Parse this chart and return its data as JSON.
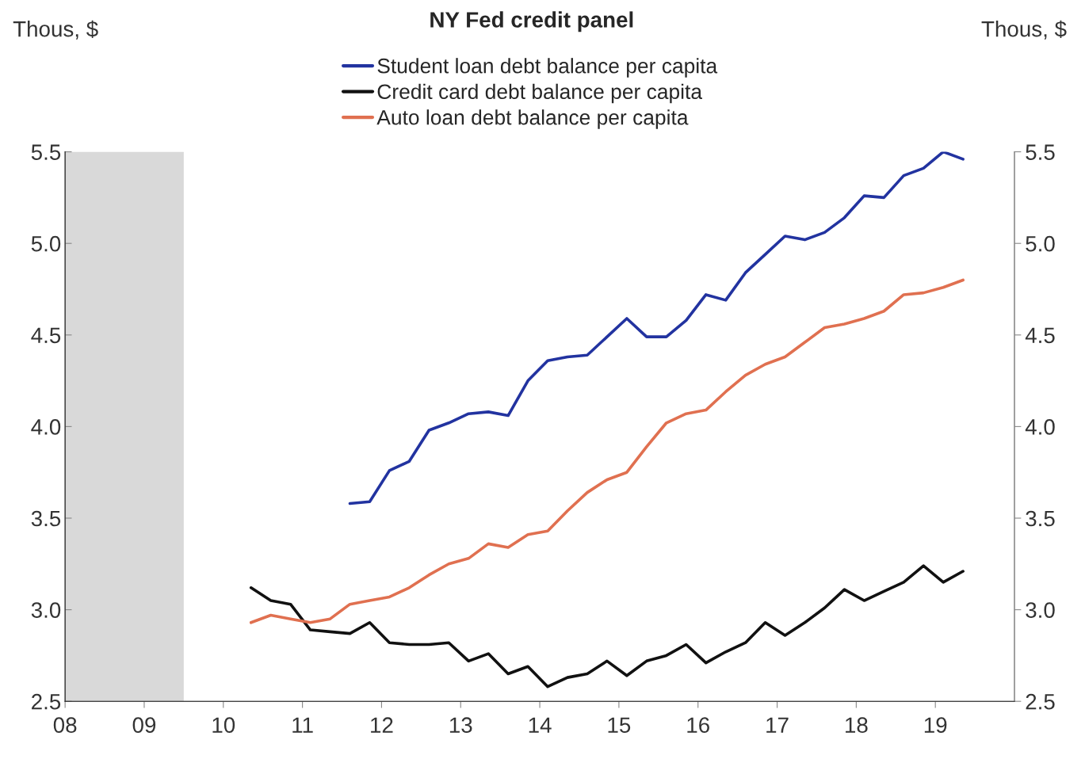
{
  "chart_data": {
    "type": "line",
    "title": "NY Fed credit panel",
    "ylabel": "Thous, $",
    "y2label": "Thous, $",
    "xlim": [
      2008,
      2020
    ],
    "xticks": [
      {
        "value": 2008,
        "label": "08"
      },
      {
        "value": 2009,
        "label": "09"
      },
      {
        "value": 2010,
        "label": "10"
      },
      {
        "value": 2011,
        "label": "11"
      },
      {
        "value": 2012,
        "label": "12"
      },
      {
        "value": 2013,
        "label": "13"
      },
      {
        "value": 2014,
        "label": "14"
      },
      {
        "value": 2015,
        "label": "15"
      },
      {
        "value": 2016,
        "label": "16"
      },
      {
        "value": 2017,
        "label": "17"
      },
      {
        "value": 2018,
        "label": "18"
      },
      {
        "value": 2019,
        "label": "19"
      }
    ],
    "ylim": [
      2.5,
      5.5
    ],
    "yticks": [
      2.5,
      {
        "value": 3,
        "label": "3.0"
      },
      3.5,
      {
        "value": 4,
        "label": "4.0"
      },
      4.5,
      {
        "value": 5,
        "label": "5.0"
      },
      5.5
    ],
    "y2lim": [
      2.5,
      5.5
    ],
    "y2ticks": [
      2.5,
      {
        "value": 3,
        "label": "3.0"
      },
      3.5,
      {
        "value": 4,
        "label": "4.0"
      },
      4.5,
      {
        "value": 5,
        "label": "5.0"
      },
      5.5
    ],
    "legend": "top",
    "grid": false,
    "line_style": "solid",
    "marker": "none",
    "bands": [
      {
        "axis": "x",
        "from": 2008,
        "to": 2009.5,
        "color": "#d9d9d9"
      }
    ],
    "series": [
      {
        "name": "Student loan debt balance per capita",
        "color": "#2233a0",
        "x": [
          2011.6,
          2011.85,
          2012.1,
          2012.35,
          2012.6,
          2012.85,
          2013.1,
          2013.35,
          2013.6,
          2013.85,
          2014.1,
          2014.35,
          2014.6,
          2014.85,
          2015.1,
          2015.35,
          2015.6,
          2015.85,
          2016.1,
          2016.35,
          2016.6,
          2016.85,
          2017.1,
          2017.35,
          2017.6,
          2017.85,
          2018.1,
          2018.35,
          2018.6,
          2018.85,
          2019.1,
          2019.35
        ],
        "values": [
          3.58,
          3.59,
          3.76,
          3.81,
          3.98,
          4.02,
          4.07,
          4.08,
          4.06,
          4.25,
          4.36,
          4.38,
          4.39,
          4.49,
          4.59,
          4.49,
          4.49,
          4.58,
          4.72,
          4.69,
          4.84,
          4.94,
          5.04,
          5.02,
          5.06,
          5.14,
          5.26,
          5.25,
          5.37,
          5.41,
          5.5,
          5.46
        ]
      },
      {
        "name": "Credit card debt balance per capita",
        "color": "#111111",
        "x": [
          2010.35,
          2010.6,
          2010.85,
          2011.1,
          2011.35,
          2011.6,
          2011.85,
          2012.1,
          2012.35,
          2012.6,
          2012.85,
          2013.1,
          2013.35,
          2013.6,
          2013.85,
          2014.1,
          2014.35,
          2014.6,
          2014.85,
          2015.1,
          2015.35,
          2015.6,
          2015.85,
          2016.1,
          2016.35,
          2016.6,
          2016.85,
          2017.1,
          2017.35,
          2017.6,
          2017.85,
          2018.1,
          2018.35,
          2018.6,
          2018.85,
          2019.1,
          2019.35
        ],
        "values": [
          3.12,
          3.05,
          3.03,
          2.89,
          2.88,
          2.87,
          2.93,
          2.82,
          2.81,
          2.81,
          2.82,
          2.72,
          2.76,
          2.65,
          2.69,
          2.58,
          2.63,
          2.65,
          2.72,
          2.64,
          2.72,
          2.75,
          2.81,
          2.71,
          2.77,
          2.82,
          2.93,
          2.86,
          2.93,
          3.01,
          3.11,
          3.05,
          3.1,
          3.15,
          3.24,
          3.15,
          3.21
        ]
      },
      {
        "name": "Auto loan debt balance per capita",
        "color": "#e07050",
        "x": [
          2010.35,
          2010.6,
          2010.85,
          2011.1,
          2011.35,
          2011.6,
          2011.85,
          2012.1,
          2012.35,
          2012.6,
          2012.85,
          2013.1,
          2013.35,
          2013.6,
          2013.85,
          2014.1,
          2014.35,
          2014.6,
          2014.85,
          2015.1,
          2015.35,
          2015.6,
          2015.85,
          2016.1,
          2016.35,
          2016.6,
          2016.85,
          2017.1,
          2017.35,
          2017.6,
          2017.85,
          2018.1,
          2018.35,
          2018.6,
          2018.85,
          2019.1,
          2019.35
        ],
        "values": [
          2.93,
          2.97,
          2.95,
          2.93,
          2.95,
          3.03,
          3.05,
          3.07,
          3.12,
          3.19,
          3.25,
          3.28,
          3.36,
          3.34,
          3.41,
          3.43,
          3.54,
          3.64,
          3.71,
          3.75,
          3.89,
          4.02,
          4.07,
          4.09,
          4.19,
          4.28,
          4.34,
          4.38,
          4.46,
          4.54,
          4.56,
          4.59,
          4.63,
          4.72,
          4.73,
          4.76,
          4.8
        ]
      }
    ]
  }
}
